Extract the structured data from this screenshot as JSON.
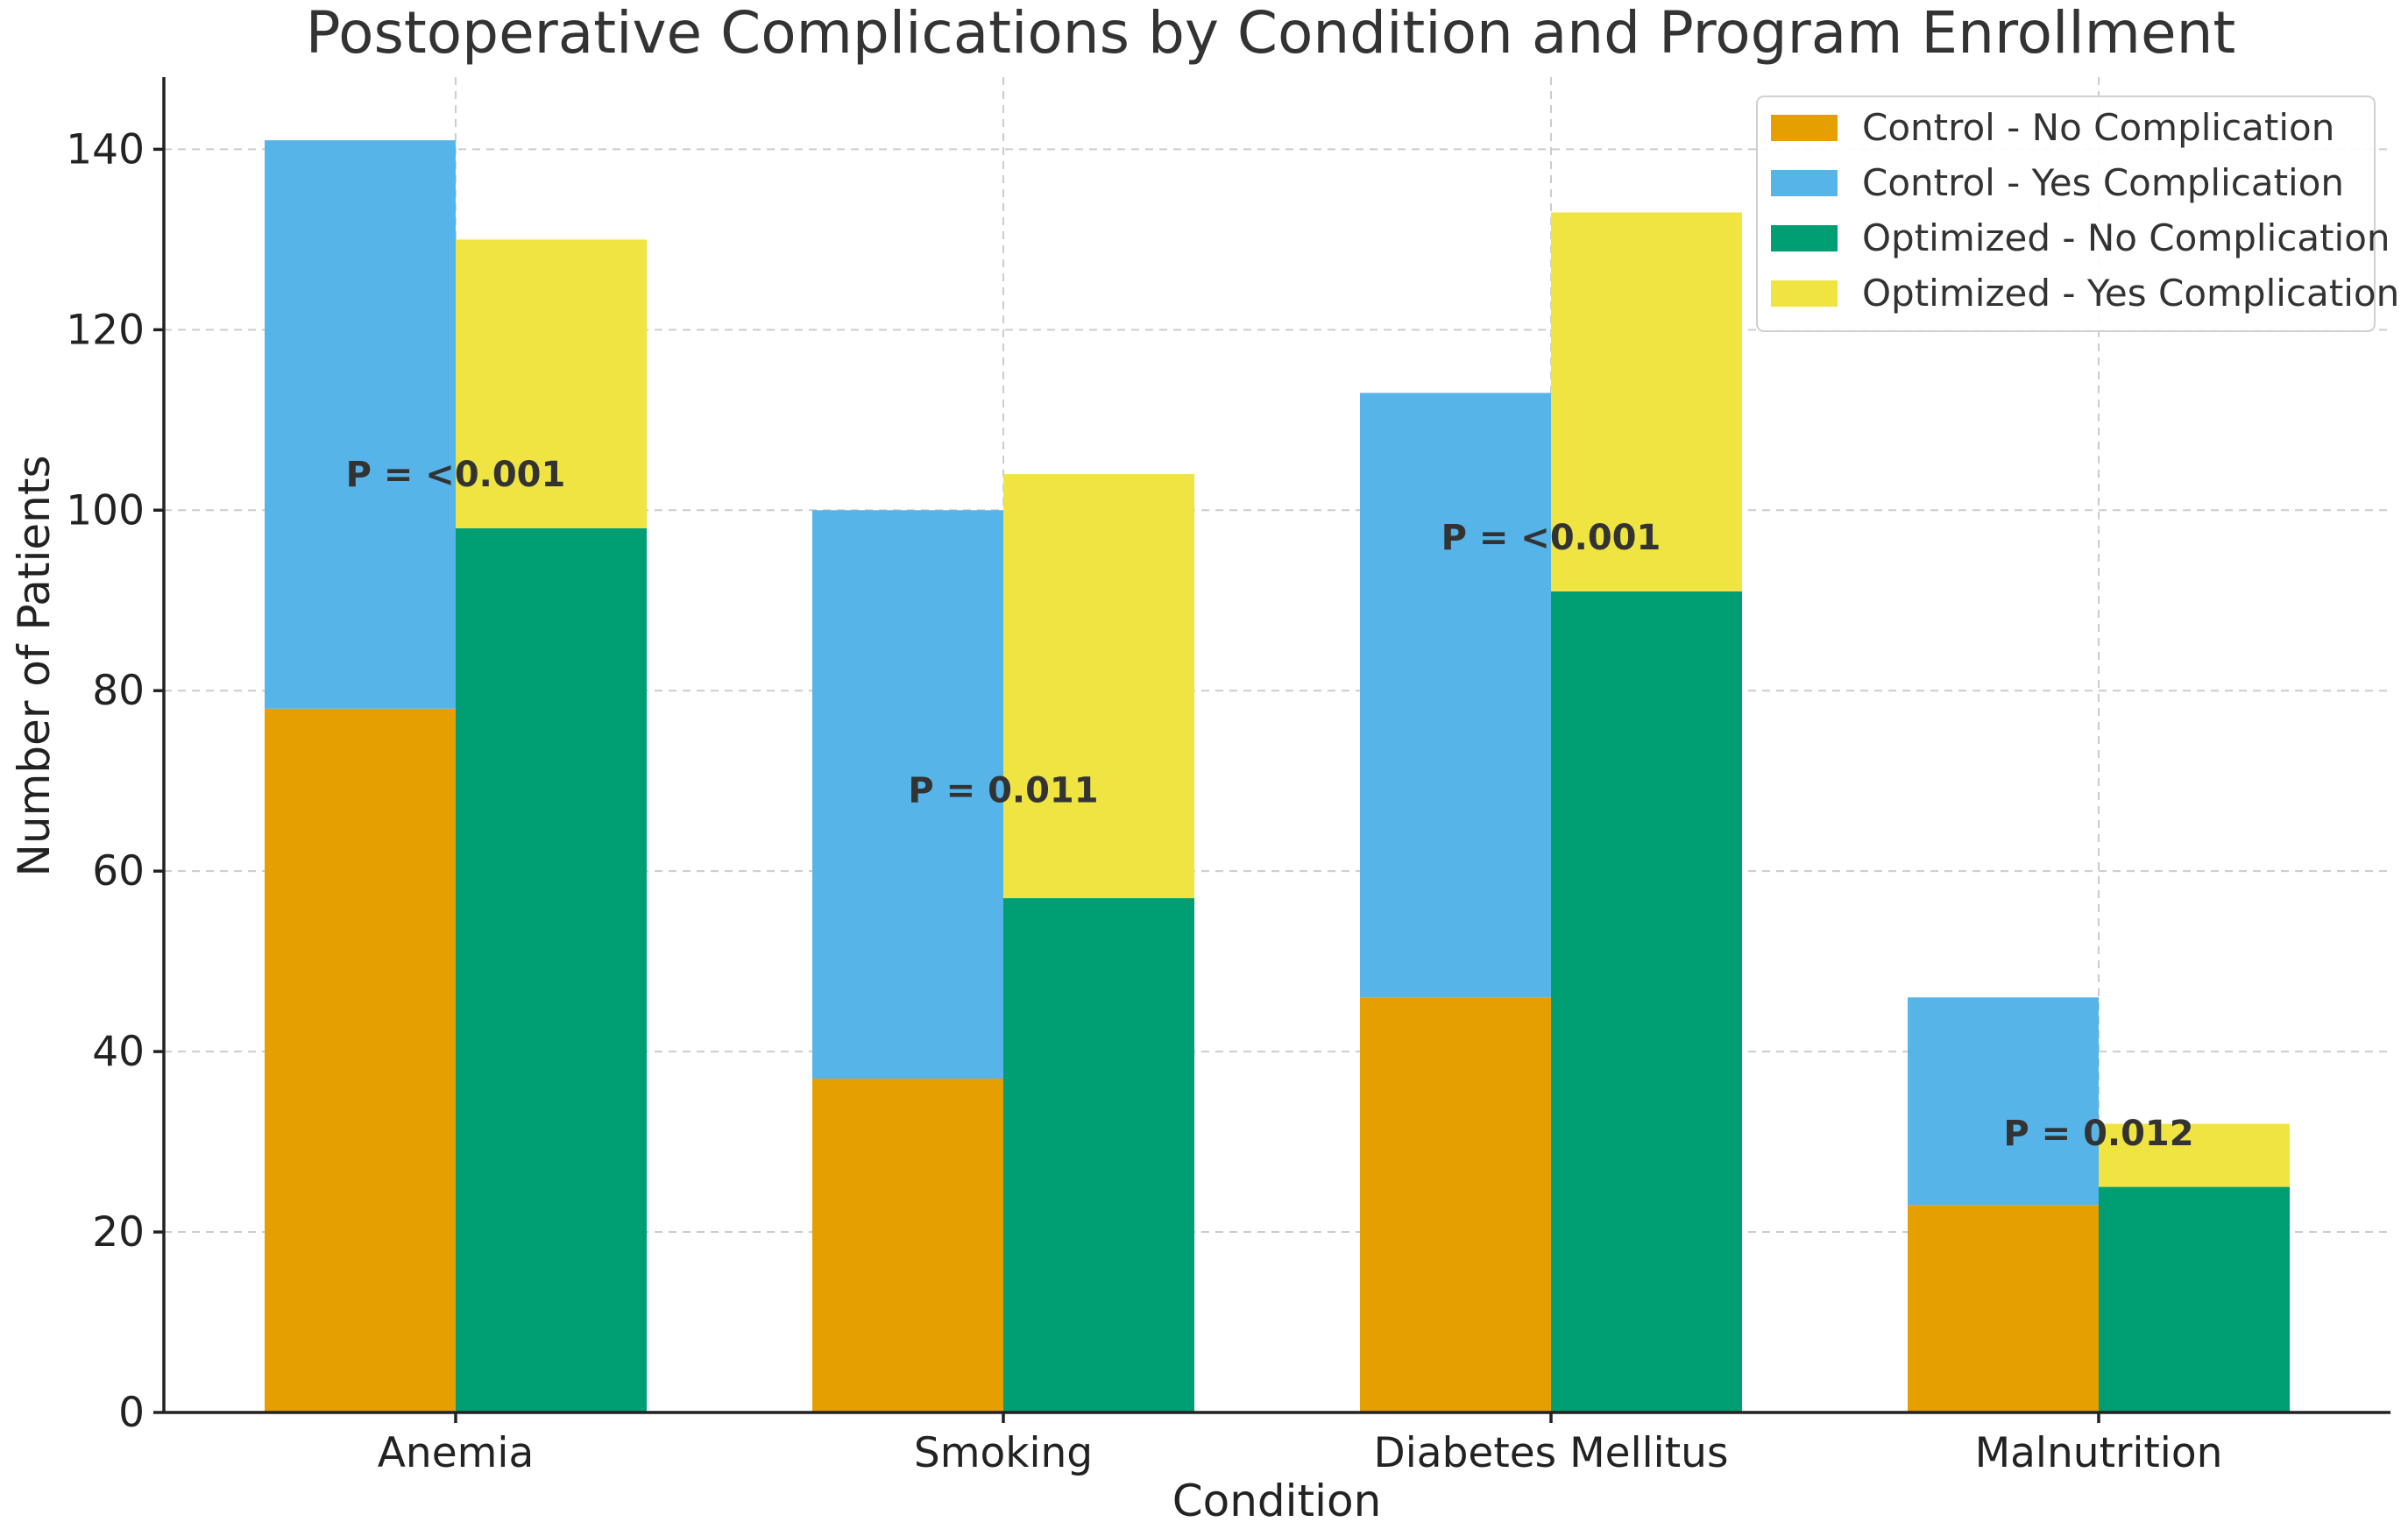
{
  "chart_data": {
    "type": "bar",
    "stacked": true,
    "title": "Postoperative Complications by Condition and Program Enrollment",
    "xlabel": "Condition",
    "ylabel": "Number of Patients",
    "ylim": [
      0,
      148
    ],
    "yticks": [
      0,
      20,
      40,
      60,
      80,
      100,
      120,
      140
    ],
    "grid": true,
    "legend_position": "top-right",
    "categories": [
      "Anemia",
      "Smoking",
      "Diabetes Mellitus",
      "Malnutrition"
    ],
    "groups": [
      {
        "name": "Control",
        "stack": [
          {
            "name": "Control - No Complication",
            "color": "#E69F00",
            "values": [
              78,
              37,
              46,
              23
            ]
          },
          {
            "name": "Control - Yes Complication",
            "color": "#56B4E9",
            "values": [
              63,
              63,
              67,
              23
            ]
          }
        ]
      },
      {
        "name": "Optimized",
        "stack": [
          {
            "name": "Optimized - No Complication",
            "color": "#009E73",
            "values": [
              98,
              57,
              91,
              25
            ]
          },
          {
            "name": "Optimized - Yes Complication",
            "color": "#F0E442",
            "values": [
              32,
              47,
              42,
              7
            ]
          }
        ]
      }
    ],
    "annotations": [
      {
        "category": "Anemia",
        "text": "P = <0.001",
        "y": 104
      },
      {
        "category": "Smoking",
        "text": "P = 0.011",
        "y": 69
      },
      {
        "category": "Diabetes Mellitus",
        "text": "P = <0.001",
        "y": 97
      },
      {
        "category": "Malnutrition",
        "text": "P = 0.012",
        "y": 31
      }
    ]
  }
}
